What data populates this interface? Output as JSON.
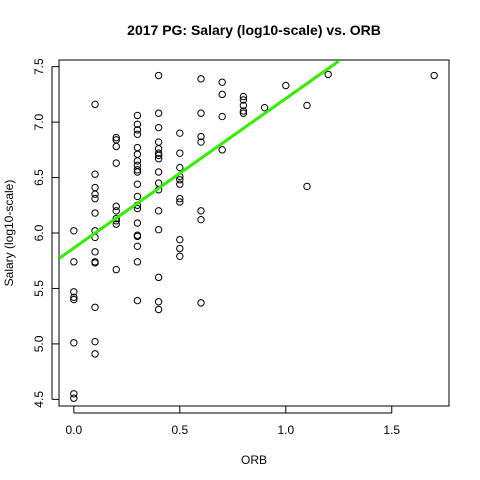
{
  "chart_data": {
    "type": "scatter",
    "title": "2017 PG: Salary (log10-scale) vs. ORB",
    "xlabel": "ORB",
    "ylabel": "Salary (log10-scale)",
    "xlim": [
      -0.07,
      1.77
    ],
    "ylim": [
      4.44,
      7.56
    ],
    "x_ticks": [
      0.0,
      0.5,
      1.0,
      1.5
    ],
    "x_tick_labels": [
      "0.0",
      "0.5",
      "1.0",
      "1.5"
    ],
    "y_ticks": [
      4.5,
      5.0,
      5.5,
      6.0,
      6.5,
      7.0,
      7.5
    ],
    "y_tick_labels": [
      "4.5",
      "5.0",
      "5.5",
      "6.0",
      "6.5",
      "7.0",
      "7.5"
    ],
    "grid": false,
    "legend": "none",
    "series": [
      {
        "marker": "open-circle",
        "color": "#000000",
        "points": [
          [
            0.0,
            6.02
          ],
          [
            0.0,
            5.74
          ],
          [
            0.0,
            5.47
          ],
          [
            0.0,
            5.42
          ],
          [
            0.0,
            5.4
          ],
          [
            0.0,
            5.01
          ],
          [
            0.0,
            4.55
          ],
          [
            0.0,
            4.51
          ],
          [
            0.1,
            7.16
          ],
          [
            0.1,
            6.53
          ],
          [
            0.1,
            6.41
          ],
          [
            0.1,
            6.35
          ],
          [
            0.1,
            6.31
          ],
          [
            0.1,
            6.18
          ],
          [
            0.1,
            6.02
          ],
          [
            0.1,
            5.96
          ],
          [
            0.1,
            5.83
          ],
          [
            0.1,
            5.74
          ],
          [
            0.1,
            5.73
          ],
          [
            0.1,
            5.33
          ],
          [
            0.1,
            5.02
          ],
          [
            0.1,
            4.91
          ],
          [
            0.2,
            6.86
          ],
          [
            0.2,
            6.84
          ],
          [
            0.2,
            6.78
          ],
          [
            0.2,
            6.63
          ],
          [
            0.2,
            6.24
          ],
          [
            0.2,
            6.2
          ],
          [
            0.2,
            6.13
          ],
          [
            0.2,
            6.11
          ],
          [
            0.2,
            6.08
          ],
          [
            0.2,
            5.67
          ],
          [
            0.3,
            7.06
          ],
          [
            0.3,
            6.98
          ],
          [
            0.3,
            6.93
          ],
          [
            0.3,
            6.89
          ],
          [
            0.3,
            6.77
          ],
          [
            0.3,
            6.71
          ],
          [
            0.3,
            6.65
          ],
          [
            0.3,
            6.61
          ],
          [
            0.3,
            6.57
          ],
          [
            0.3,
            6.55
          ],
          [
            0.3,
            6.44
          ],
          [
            0.3,
            6.33
          ],
          [
            0.3,
            6.25
          ],
          [
            0.3,
            6.22
          ],
          [
            0.3,
            6.09
          ],
          [
            0.3,
            5.98
          ],
          [
            0.3,
            5.97
          ],
          [
            0.3,
            5.88
          ],
          [
            0.3,
            5.74
          ],
          [
            0.3,
            5.39
          ],
          [
            0.4,
            7.42
          ],
          [
            0.4,
            7.08
          ],
          [
            0.4,
            6.95
          ],
          [
            0.4,
            6.82
          ],
          [
            0.4,
            6.76
          ],
          [
            0.4,
            6.72
          ],
          [
            0.4,
            6.7
          ],
          [
            0.4,
            6.67
          ],
          [
            0.4,
            6.55
          ],
          [
            0.4,
            6.45
          ],
          [
            0.4,
            6.39
          ],
          [
            0.4,
            6.2
          ],
          [
            0.4,
            6.03
          ],
          [
            0.4,
            5.6
          ],
          [
            0.4,
            5.38
          ],
          [
            0.4,
            5.31
          ],
          [
            0.5,
            6.9
          ],
          [
            0.5,
            6.72
          ],
          [
            0.5,
            6.59
          ],
          [
            0.5,
            6.51
          ],
          [
            0.5,
            6.48
          ],
          [
            0.5,
            6.44
          ],
          [
            0.5,
            6.31
          ],
          [
            0.5,
            6.28
          ],
          [
            0.5,
            5.94
          ],
          [
            0.5,
            5.86
          ],
          [
            0.5,
            5.79
          ],
          [
            0.6,
            7.39
          ],
          [
            0.6,
            7.08
          ],
          [
            0.6,
            6.87
          ],
          [
            0.6,
            6.82
          ],
          [
            0.6,
            6.2
          ],
          [
            0.6,
            6.12
          ],
          [
            0.6,
            5.37
          ],
          [
            0.7,
            7.36
          ],
          [
            0.7,
            7.25
          ],
          [
            0.7,
            7.05
          ],
          [
            0.7,
            6.75
          ],
          [
            0.8,
            7.23
          ],
          [
            0.8,
            7.2
          ],
          [
            0.8,
            7.15
          ],
          [
            0.8,
            7.1
          ],
          [
            0.8,
            7.08
          ],
          [
            0.9,
            7.13
          ],
          [
            1.0,
            7.33
          ],
          [
            1.1,
            7.15
          ],
          [
            1.1,
            6.42
          ],
          [
            1.2,
            7.43
          ],
          [
            1.7,
            7.42
          ]
        ]
      }
    ],
    "fit_line": {
      "color": "#33ee00",
      "points": [
        [
          -0.07,
          5.77
        ],
        [
          1.25,
          7.55
        ]
      ]
    }
  }
}
